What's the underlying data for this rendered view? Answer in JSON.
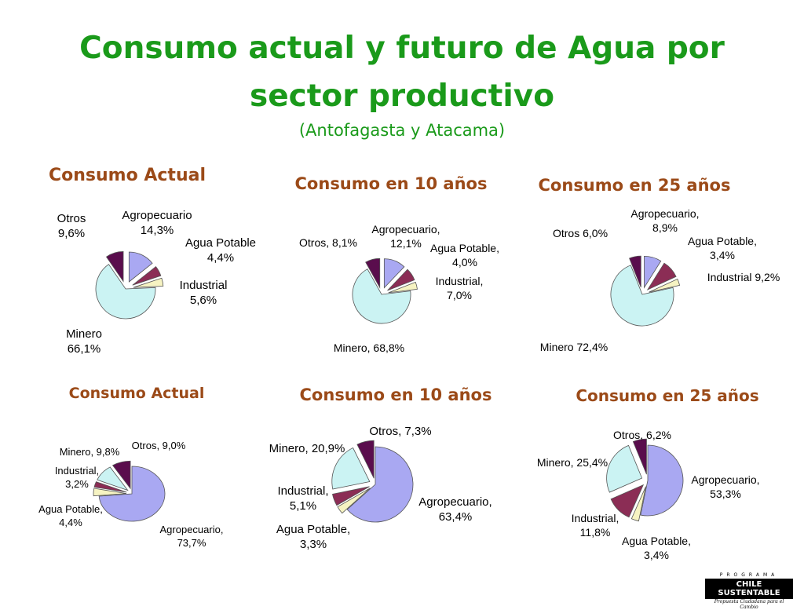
{
  "title_line1": "Consumo actual y futuro de Agua por",
  "title_line2": "sector productivo",
  "subtitle": "(Antofagasta y Atacama)",
  "colors": {
    "title": "#1a9a1a",
    "chart_title": "#9b4a18",
    "agropecuario": "#a9a8f2",
    "agua_potable": "#f6f3c2",
    "industrial": "#8b2d55",
    "minero": "#cbf3f3",
    "otros": "#5a0d4d"
  },
  "logo": {
    "top": "PROGRAMA",
    "main": "CHILE SUSTENTABLE",
    "sub": "Propuesta Ciudadana para el Cambio"
  },
  "chart_data": [
    {
      "type": "pie",
      "title": "Consumo Actual",
      "slices": [
        {
          "category": "Agropecuario",
          "value": 14.3,
          "label": [
            "Agropecuario",
            "14,3%"
          ]
        },
        {
          "category": "Industrial",
          "value": 5.6,
          "label": [
            "Industrial",
            "5,6%"
          ]
        },
        {
          "category": "Agua Potable",
          "value": 4.4,
          "label": [
            "Agua Potable",
            "4,4%"
          ]
        },
        {
          "category": "Minero",
          "value": 66.1,
          "label": [
            "Minero",
            "66,1%"
          ]
        },
        {
          "category": "Otros",
          "value": 9.6,
          "label": [
            "Otros",
            "9,6%"
          ]
        }
      ]
    },
    {
      "type": "pie",
      "title": "Consumo en 10 años",
      "slices": [
        {
          "category": "Agropecuario",
          "value": 12.1,
          "label": [
            "Agropecuario,",
            "12,1%"
          ]
        },
        {
          "category": "Industrial",
          "value": 7.0,
          "label": [
            "Industrial,",
            "7,0%"
          ]
        },
        {
          "category": "Agua Potable",
          "value": 4.0,
          "label": [
            "Agua Potable,",
            "4,0%"
          ]
        },
        {
          "category": "Minero",
          "value": 68.8,
          "label": [
            "Minero, 68,8%"
          ]
        },
        {
          "category": "Otros",
          "value": 8.1,
          "label": [
            "Otros, 8,1%"
          ]
        }
      ]
    },
    {
      "type": "pie",
      "title": "Consumo en  25 años",
      "slices": [
        {
          "category": "Agropecuario",
          "value": 8.9,
          "label": [
            "Agropecuario,",
            "8,9%"
          ]
        },
        {
          "category": "Industrial",
          "value": 9.2,
          "label": [
            "Industrial 9,2%"
          ]
        },
        {
          "category": "Agua Potable",
          "value": 3.4,
          "label": [
            "Agua Potable,",
            "3,4%"
          ]
        },
        {
          "category": "Minero",
          "value": 72.4,
          "label": [
            "Minero 72,4%"
          ]
        },
        {
          "category": "Otros",
          "value": 6.0,
          "label": [
            "Otros 6,0%"
          ]
        }
      ]
    },
    {
      "type": "pie",
      "title": "Consumo Actual",
      "slices": [
        {
          "category": "Agropecuario",
          "value": 73.7,
          "label": [
            "Agropecuario,",
            "73,7%"
          ]
        },
        {
          "category": "Agua Potable",
          "value": 4.4,
          "label": [
            "Agua Potable,",
            "4,4%"
          ]
        },
        {
          "category": "Industrial",
          "value": 3.2,
          "label": [
            "Industrial,",
            "3,2%"
          ]
        },
        {
          "category": "Minero",
          "value": 9.8,
          "label": [
            "Minero, 9,8%"
          ]
        },
        {
          "category": "Otros",
          "value": 9.0,
          "label": [
            "Otros, 9,0%"
          ]
        }
      ]
    },
    {
      "type": "pie",
      "title": "Consumo en 10 años",
      "slices": [
        {
          "category": "Agropecuario",
          "value": 63.4,
          "label": [
            "Agropecuario,",
            "63,4%"
          ]
        },
        {
          "category": "Agua Potable",
          "value": 3.3,
          "label": [
            "Agua Potable,",
            "3,3%"
          ]
        },
        {
          "category": "Industrial",
          "value": 5.1,
          "label": [
            "Industrial,",
            "5,1%"
          ]
        },
        {
          "category": "Minero",
          "value": 20.9,
          "label": [
            "Minero, 20,9%"
          ]
        },
        {
          "category": "Otros",
          "value": 7.3,
          "label": [
            "Otros, 7,3%"
          ]
        }
      ]
    },
    {
      "type": "pie",
      "title": "Consumo en 25 años",
      "slices": [
        {
          "category": "Agropecuario",
          "value": 53.3,
          "label": [
            "Agropecuario,",
            "53,3%"
          ]
        },
        {
          "category": "Agua Potable",
          "value": 3.4,
          "label": [
            "Agua Potable,",
            "3,4%"
          ]
        },
        {
          "category": "Industrial",
          "value": 11.8,
          "label": [
            "Industrial,",
            "11,8%"
          ]
        },
        {
          "category": "Minero",
          "value": 25.4,
          "label": [
            "Minero, 25,4%"
          ]
        },
        {
          "category": "Otros",
          "value": 6.2,
          "label": [
            "Otros, 6,2%"
          ]
        }
      ]
    }
  ]
}
